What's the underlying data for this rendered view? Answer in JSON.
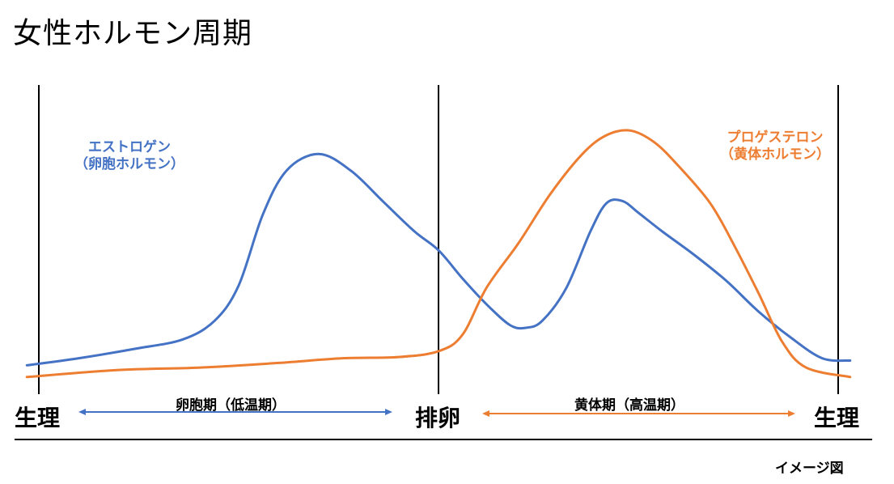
{
  "title": "女性ホルモン周期",
  "phase_labels": {
    "start": "生理",
    "ovulation": "排卵",
    "end": "生理"
  },
  "periods": {
    "follicular": "卵胞期（低温期）",
    "luteal": "黄体期（高温期）"
  },
  "note": "イメージ図",
  "colors": {
    "estrogen": "#4472C4",
    "progesterone": "#ED7D31",
    "divider": "#000000"
  },
  "chart_data": {
    "type": "line",
    "x_range": [
      0,
      100
    ],
    "y_range": [
      0,
      100
    ],
    "axis_ticks": "none",
    "grid": false,
    "markers": [
      {
        "name": "生理",
        "x": 0
      },
      {
        "name": "排卵",
        "x": 50
      },
      {
        "name": "生理",
        "x": 100
      }
    ],
    "series": [
      {
        "name": "エストロゲン（卵胞ホルモン）",
        "name_lines": [
          "エストロゲン",
          "（卵胞ホルモン）"
        ],
        "color": "#4472C4",
        "points": [
          [
            -1.5,
            3
          ],
          [
            5,
            6
          ],
          [
            12,
            10
          ],
          [
            18,
            14
          ],
          [
            22,
            22
          ],
          [
            25,
            37
          ],
          [
            28,
            67
          ],
          [
            31,
            86
          ],
          [
            35,
            93
          ],
          [
            39,
            86
          ],
          [
            43,
            73
          ],
          [
            47,
            60
          ],
          [
            50,
            52
          ],
          [
            53,
            40
          ],
          [
            56,
            29
          ],
          [
            59,
            20
          ],
          [
            61,
            19
          ],
          [
            63,
            22
          ],
          [
            66,
            36
          ],
          [
            69,
            60
          ],
          [
            71,
            72
          ],
          [
            73,
            73
          ],
          [
            75,
            68
          ],
          [
            78,
            60
          ],
          [
            82,
            50
          ],
          [
            86,
            39
          ],
          [
            90,
            26
          ],
          [
            94,
            15
          ],
          [
            98,
            6
          ],
          [
            101.5,
            5
          ]
        ]
      },
      {
        "name": "プロゲステロン（黄体ホルモン）",
        "name_lines": [
          "プロゲステロン",
          "（黄体ホルモン）"
        ],
        "color": "#ED7D31",
        "points": [
          [
            -1.5,
            -2
          ],
          [
            10,
            1
          ],
          [
            20,
            2
          ],
          [
            30,
            4
          ],
          [
            38,
            6
          ],
          [
            45,
            6.5
          ],
          [
            50,
            9
          ],
          [
            53,
            16
          ],
          [
            56,
            36
          ],
          [
            60,
            55
          ],
          [
            64,
            76
          ],
          [
            68,
            93
          ],
          [
            71,
            101
          ],
          [
            74,
            103
          ],
          [
            77,
            98
          ],
          [
            80,
            88
          ],
          [
            84,
            72
          ],
          [
            87,
            54
          ],
          [
            90,
            34
          ],
          [
            93,
            13
          ],
          [
            96,
            2
          ],
          [
            101.5,
            -2
          ]
        ]
      }
    ]
  }
}
